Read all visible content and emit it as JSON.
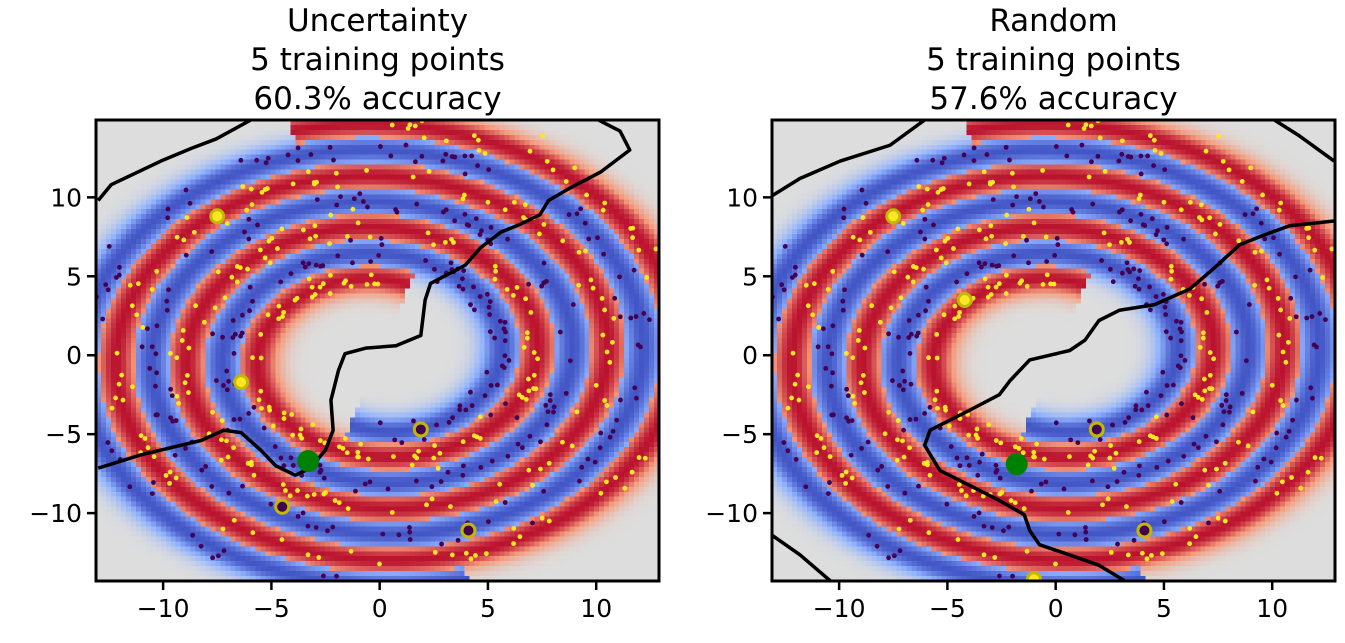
{
  "chart_data": [
    {
      "type": "scatter",
      "title": [
        "Uncertainty",
        "5 training points",
        "60.3% accuracy"
      ],
      "xlim": [
        -13.1,
        12.9
      ],
      "ylim": [
        -14.3,
        14.9
      ],
      "xticks": [
        -10,
        -5,
        0,
        5,
        10
      ],
      "yticks": [
        -10,
        -5,
        0,
        5,
        10
      ],
      "xtick_labels": [
        "−10",
        "−5",
        "0",
        "5",
        "10"
      ],
      "ytick_labels": [
        "−10",
        "−5",
        "0",
        "5",
        "10"
      ],
      "background": "heatmap of predicted class probability (coolwarm)",
      "spiral": {
        "r0": 4,
        "b": 0.52,
        "theta_start": 1.5708,
        "theta_end": 20.4,
        "noise": 0.38,
        "n_per_class": 300,
        "seed": 7
      },
      "training_points": [
        {
          "x": -7.5,
          "y": 8.8,
          "class": 1
        },
        {
          "x": -6.4,
          "y": -1.7,
          "class": 1
        },
        {
          "x": 1.9,
          "y": -4.7,
          "class": 0
        },
        {
          "x": -4.5,
          "y": -9.6,
          "class": 0
        },
        {
          "x": 4.1,
          "y": -11.1,
          "class": 0
        }
      ],
      "query_point": {
        "x": -3.3,
        "y": -6.7
      },
      "decision_boundary": [
        [
          [
            -13,
            -7.15
          ],
          [
            -11,
            -6.3
          ],
          [
            -8.25,
            -5.4
          ],
          [
            -7.2,
            -4.75
          ],
          [
            -6.4,
            -4.9
          ],
          [
            -5.5,
            -6.0
          ],
          [
            -4.8,
            -7.0
          ],
          [
            -3.9,
            -7.6
          ],
          [
            -3.2,
            -7.15
          ],
          [
            -2.5,
            -6.0
          ],
          [
            -2.15,
            -4.75
          ],
          [
            -2.25,
            -2.85
          ],
          [
            -1.9,
            -0.95
          ],
          [
            -1.6,
            0.1
          ],
          [
            -0.65,
            0.45
          ],
          [
            0.75,
            0.6
          ],
          [
            1.9,
            1.25
          ],
          [
            2.1,
            3.5
          ],
          [
            2.35,
            4.55
          ],
          [
            3.95,
            5.7
          ],
          [
            4.65,
            6.8
          ],
          [
            5.6,
            7.8
          ],
          [
            6.5,
            8.3
          ],
          [
            7.4,
            8.9
          ],
          [
            7.8,
            9.8
          ],
          [
            8.8,
            10.6
          ],
          [
            10.2,
            11.6
          ],
          [
            11.55,
            13.0
          ],
          [
            11.1,
            14.2
          ],
          [
            10.1,
            14.9
          ]
        ],
        [
          [
            -13,
            9.8
          ],
          [
            -12.4,
            10.8
          ],
          [
            -10.1,
            12.3
          ],
          [
            -8.7,
            13.1
          ],
          [
            -7.55,
            13.7
          ],
          [
            -5.95,
            14.9
          ]
        ]
      ]
    },
    {
      "type": "scatter",
      "title": [
        "Random",
        "5 training points",
        "57.6% accuracy"
      ],
      "xlim": [
        -13.1,
        12.9
      ],
      "ylim": [
        -14.3,
        14.9
      ],
      "xticks": [
        -10,
        -5,
        0,
        5,
        10
      ],
      "yticks": [
        -10,
        -5,
        0,
        5,
        10
      ],
      "xtick_labels": [
        "−10",
        "−5",
        "0",
        "5",
        "10"
      ],
      "ytick_labels": [
        "−10",
        "−5",
        "0",
        "5",
        "10"
      ],
      "background": "heatmap of predicted class probability (coolwarm)",
      "spiral": {
        "r0": 4,
        "b": 0.52,
        "theta_start": 1.5708,
        "theta_end": 20.4,
        "noise": 0.38,
        "n_per_class": 300,
        "seed": 7
      },
      "training_points": [
        {
          "x": -7.5,
          "y": 8.8,
          "class": 1
        },
        {
          "x": -4.2,
          "y": 3.5,
          "class": 1
        },
        {
          "x": -1.0,
          "y": -14.2,
          "class": 1
        },
        {
          "x": 1.9,
          "y": -4.7,
          "class": 0
        },
        {
          "x": 4.1,
          "y": -11.1,
          "class": 0
        }
      ],
      "query_point": {
        "x": -1.8,
        "y": -6.9
      },
      "decision_boundary": [
        [
          [
            12.86,
            8.5
          ],
          [
            10.8,
            8.2
          ],
          [
            9.6,
            7.6
          ],
          [
            8.5,
            7.0
          ],
          [
            7.3,
            5.5
          ],
          [
            6.2,
            4.2
          ],
          [
            4.55,
            3.2
          ],
          [
            2.95,
            2.85
          ],
          [
            2.0,
            2.2
          ],
          [
            1.35,
            0.95
          ],
          [
            0.65,
            0.3
          ],
          [
            -1.2,
            -0.3
          ],
          [
            -2.1,
            -1.6
          ],
          [
            -2.6,
            -2.5
          ],
          [
            -4.0,
            -3.5
          ],
          [
            -5.8,
            -4.75
          ],
          [
            -6.05,
            -5.7
          ],
          [
            -5.35,
            -7.3
          ],
          [
            -2.6,
            -9.2
          ],
          [
            -1.45,
            -10.1
          ],
          [
            -1.2,
            -11.1
          ],
          [
            -0.75,
            -12.0
          ],
          [
            0.65,
            -12.65
          ],
          [
            2.0,
            -13.3
          ],
          [
            3.2,
            -14.3
          ]
        ],
        [
          [
            -13.1,
            10.1
          ],
          [
            -11.8,
            11.2
          ],
          [
            -9.95,
            12.3
          ],
          [
            -7.65,
            13.3
          ],
          [
            -6.05,
            14.9
          ]
        ],
        [
          [
            10.1,
            14.9
          ],
          [
            11.25,
            13.9
          ],
          [
            12.86,
            12.3
          ]
        ],
        [
          [
            -13.1,
            -11.4
          ],
          [
            -11.8,
            -12.65
          ],
          [
            -10.4,
            -14.3
          ]
        ]
      ]
    }
  ],
  "colors": {
    "class1": "#fde725",
    "class0": "#440154",
    "train_edge": "#c2b800",
    "query": "#008000",
    "boundary": "#000000",
    "neutral": "#dddddd",
    "red": "#b40426",
    "blue": "#3b4cc0"
  }
}
